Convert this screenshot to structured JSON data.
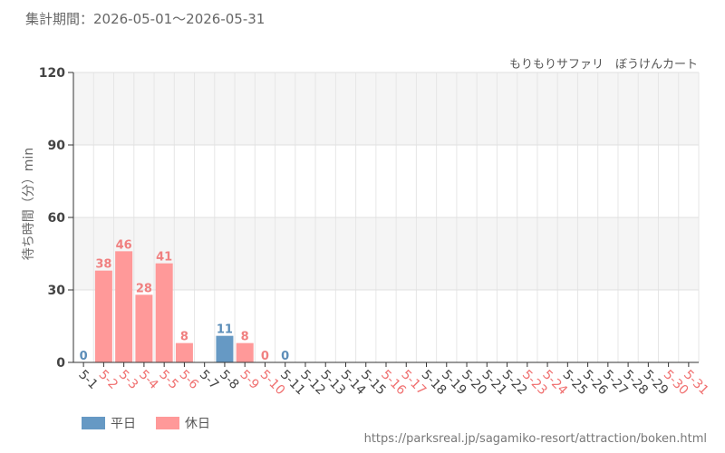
{
  "header": {
    "period": "集計期間：2026-05-01～2026-05-31",
    "attraction": "もりもりサファリ　ぼうけんカート"
  },
  "footer": {
    "source": "https://parksreal.jp/sagamiko-resort/attraction/boken.html"
  },
  "colors": {
    "weekday": "#6699c4",
    "holiday": "#ff9999",
    "weekday_label": "#5b8db8",
    "holiday_label": "#f08080",
    "weekday_tick": "#444444",
    "holiday_tick": "#f07070"
  },
  "chart_data": {
    "type": "bar",
    "ylabel": "待ち時間（分）min",
    "ylim": [
      0,
      120
    ],
    "yticks": [
      0,
      30,
      60,
      90,
      120
    ],
    "grid": true,
    "legend": [
      {
        "key": "weekday",
        "label": "平日"
      },
      {
        "key": "holiday",
        "label": "休日"
      }
    ],
    "categories": [
      "5-1",
      "5-2",
      "5-3",
      "5-4",
      "5-5",
      "5-6",
      "5-7",
      "5-8",
      "5-9",
      "5-10",
      "5-11",
      "5-12",
      "5-13",
      "5-14",
      "5-15",
      "5-16",
      "5-17",
      "5-18",
      "5-19",
      "5-20",
      "5-21",
      "5-22",
      "5-23",
      "5-24",
      "5-25",
      "5-26",
      "5-27",
      "5-28",
      "5-29",
      "5-30",
      "5-31"
    ],
    "day_type": [
      "weekday",
      "holiday",
      "holiday",
      "holiday",
      "holiday",
      "holiday",
      "weekday",
      "weekday",
      "holiday",
      "holiday",
      "weekday",
      "weekday",
      "weekday",
      "weekday",
      "weekday",
      "holiday",
      "holiday",
      "weekday",
      "weekday",
      "weekday",
      "weekday",
      "weekday",
      "holiday",
      "holiday",
      "weekday",
      "weekday",
      "weekday",
      "weekday",
      "weekday",
      "holiday",
      "holiday"
    ],
    "values": [
      0,
      38,
      46,
      28,
      41,
      8,
      null,
      11,
      8,
      0,
      0,
      null,
      null,
      null,
      null,
      null,
      null,
      null,
      null,
      null,
      null,
      null,
      null,
      null,
      null,
      null,
      null,
      null,
      null,
      null,
      null
    ]
  }
}
